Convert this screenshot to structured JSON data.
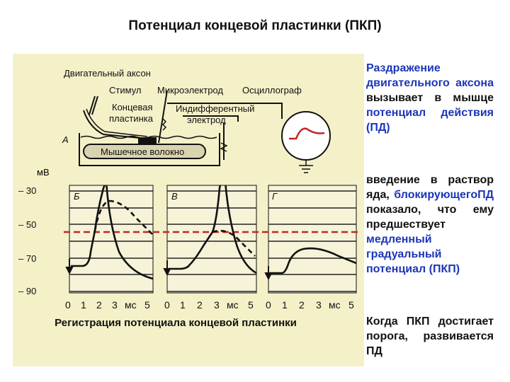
{
  "title": "Потенциал концевой пластинки (ПКП)",
  "figure": {
    "labels": {
      "motor_axon": "Двигательный аксон",
      "stimulus": "Стимул",
      "microelectrode": "Микроэлектрод",
      "oscillograph": "Осциллограф",
      "end_plate_1": "Концевая",
      "end_plate_2": "пластинка",
      "indifferent_1": "Индифферентный",
      "indifferent_2": "электрод",
      "panel_a": "А",
      "muscle_fiber": "Мышечное волокно",
      "mv": "мВ",
      "panel_b": "Б",
      "panel_v": "В",
      "panel_g": "Г"
    },
    "y_ticks": [
      "– 30",
      "– 50",
      "– 70",
      "– 90"
    ],
    "x_ticks": [
      "0",
      "1",
      "2",
      "3",
      "мс",
      "5"
    ],
    "threshold_color": "#c0282a",
    "caption": "Регистрация потенциала концевой пластинки"
  },
  "text": {
    "p1": {
      "a": "Раздражение двигательного аксона",
      "b": " вызывает в мышце ",
      "c": "потенциал действия (ПД)"
    },
    "p2": {
      "a": "введение в раствор яда, ",
      "b": "блокирующегоПД",
      "c": " показало, что ему предшествует ",
      "d": "медленный градуальный потенциал (ПКП)"
    },
    "p3": {
      "a": "Когда ПКП достигает порога, развивается ПД"
    }
  }
}
